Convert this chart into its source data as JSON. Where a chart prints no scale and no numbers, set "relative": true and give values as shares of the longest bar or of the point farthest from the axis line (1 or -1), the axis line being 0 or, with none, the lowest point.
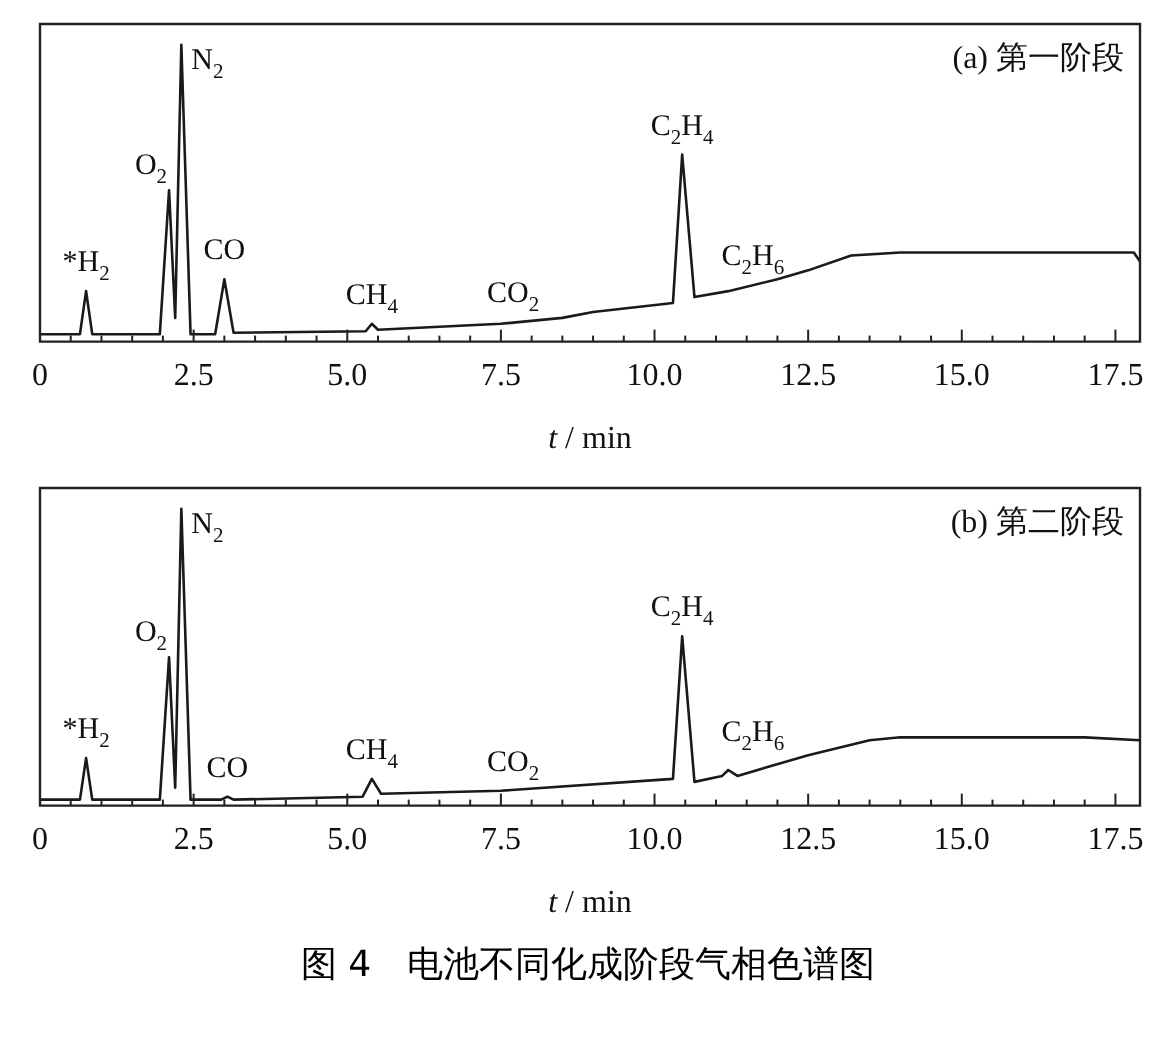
{
  "chart_data": [
    {
      "type": "line",
      "title": "(a) 第一阶段",
      "xlabel": "t / min",
      "relative": true,
      "marker": "none",
      "line_style": "solid",
      "legend": false,
      "grid": false,
      "xlim": [
        0,
        17.9
      ],
      "xticks": [
        0,
        {
          "value": 0.5,
          "label": null
        },
        {
          "value": 1,
          "label": null
        },
        {
          "value": 1.5,
          "label": null
        },
        {
          "value": 2,
          "label": null
        },
        2.5,
        {
          "value": 3,
          "label": null
        },
        {
          "value": 3.5,
          "label": null
        },
        {
          "value": 4,
          "label": null
        },
        {
          "value": 4.5,
          "label": null
        },
        {
          "value": 5,
          "label": "5.0"
        },
        {
          "value": 5.5,
          "label": null
        },
        {
          "value": 6,
          "label": null
        },
        {
          "value": 6.5,
          "label": null
        },
        {
          "value": 7,
          "label": null
        },
        7.5,
        {
          "value": 8,
          "label": null
        },
        {
          "value": 8.5,
          "label": null
        },
        {
          "value": 9,
          "label": null
        },
        {
          "value": 9.5,
          "label": null
        },
        {
          "value": 10,
          "label": "10.0"
        },
        {
          "value": 10.5,
          "label": null
        },
        {
          "value": 11,
          "label": null
        },
        {
          "value": 11.5,
          "label": null
        },
        {
          "value": 12,
          "label": null
        },
        12.5,
        {
          "value": 13,
          "label": null
        },
        {
          "value": 13.5,
          "label": null
        },
        {
          "value": 14,
          "label": null
        },
        {
          "value": 14.5,
          "label": null
        },
        {
          "value": 15,
          "label": "15.0"
        },
        {
          "value": 15.5,
          "label": null
        },
        {
          "value": 16,
          "label": null
        },
        {
          "value": 16.5,
          "label": null
        },
        {
          "value": 17,
          "label": null
        },
        17.5
      ],
      "series": [
        {
          "color": "#1a1a1a",
          "x": [
            0,
            0.65,
            0.75,
            0.85,
            1.95,
            2.1,
            2.2,
            2.3,
            2.45,
            2.85,
            3.0,
            3.15,
            5.3,
            5.4,
            5.5,
            7.5,
            8.5,
            9.0,
            10.3,
            10.45,
            10.65,
            11.2,
            12.0,
            12.5,
            13.2,
            14,
            17.8,
            17.9
          ],
          "values": [
            0.025,
            0.025,
            0.17,
            0.025,
            0.025,
            0.51,
            0.08,
            1.0,
            0.025,
            0.025,
            0.21,
            0.03,
            0.035,
            0.06,
            0.04,
            0.06,
            0.08,
            0.1,
            0.13,
            0.63,
            0.15,
            0.17,
            0.21,
            0.24,
            0.29,
            0.3,
            0.3,
            0.27
          ]
        }
      ],
      "annotations": [
        {
          "text": "*H$_{2}$",
          "x": 0.75,
          "y": 0.17
        },
        {
          "text": "O$_{2}$",
          "x": 2.1,
          "y": 0.51
        },
        {
          "text": "N$_{2}$",
          "x": 2.3,
          "y": 1.0
        },
        {
          "text": "CO",
          "x": 3.0,
          "y": 0.21
        },
        {
          "text": "CH$_{4}$",
          "x": 5.4,
          "y": 0.06
        },
        {
          "text": "CO$_{2}$",
          "x": 7.7,
          "y": 0.065
        },
        {
          "text": "C$_{2}$H$_{4}$",
          "x": 10.45,
          "y": 0.63
        },
        {
          "text": "C$_{2}$H$_{6}$",
          "x": 11.6,
          "y": 0.19
        }
      ]
    },
    {
      "type": "line",
      "title": "(b) 第二阶段",
      "xlabel": "t / min",
      "relative": true,
      "marker": "none",
      "line_style": "solid",
      "legend": false,
      "grid": false,
      "xlim": [
        0,
        17.9
      ],
      "xticks": [
        0,
        {
          "value": 0.5,
          "label": null
        },
        {
          "value": 1,
          "label": null
        },
        {
          "value": 1.5,
          "label": null
        },
        {
          "value": 2,
          "label": null
        },
        2.5,
        {
          "value": 3,
          "label": null
        },
        {
          "value": 3.5,
          "label": null
        },
        {
          "value": 4,
          "label": null
        },
        {
          "value": 4.5,
          "label": null
        },
        {
          "value": 5,
          "label": "5.0"
        },
        {
          "value": 5.5,
          "label": null
        },
        {
          "value": 6,
          "label": null
        },
        {
          "value": 6.5,
          "label": null
        },
        {
          "value": 7,
          "label": null
        },
        7.5,
        {
          "value": 8,
          "label": null
        },
        {
          "value": 8.5,
          "label": null
        },
        {
          "value": 9,
          "label": null
        },
        {
          "value": 9.5,
          "label": null
        },
        {
          "value": 10,
          "label": "10.0"
        },
        {
          "value": 10.5,
          "label": null
        },
        {
          "value": 11,
          "label": null
        },
        {
          "value": 11.5,
          "label": null
        },
        {
          "value": 12,
          "label": null
        },
        12.5,
        {
          "value": 13,
          "label": null
        },
        {
          "value": 13.5,
          "label": null
        },
        {
          "value": 14,
          "label": null
        },
        {
          "value": 14.5,
          "label": null
        },
        {
          "value": 15,
          "label": "15.0"
        },
        {
          "value": 15.5,
          "label": null
        },
        {
          "value": 16,
          "label": null
        },
        {
          "value": 16.5,
          "label": null
        },
        {
          "value": 17,
          "label": null
        },
        17.5
      ],
      "series": [
        {
          "color": "#1a1a1a",
          "x": [
            0,
            0.65,
            0.75,
            0.85,
            1.95,
            2.1,
            2.2,
            2.3,
            2.45,
            2.95,
            3.05,
            3.15,
            5.25,
            5.4,
            5.55,
            7.5,
            10.3,
            10.45,
            10.65,
            11.1,
            11.2,
            11.35,
            12.5,
            13.5,
            14,
            15,
            16,
            17,
            17.9
          ],
          "values": [
            0.02,
            0.02,
            0.16,
            0.02,
            0.02,
            0.5,
            0.06,
            1.0,
            0.02,
            0.02,
            0.03,
            0.02,
            0.03,
            0.09,
            0.04,
            0.05,
            0.09,
            0.57,
            0.08,
            0.1,
            0.12,
            0.1,
            0.17,
            0.22,
            0.23,
            0.23,
            0.23,
            0.23,
            0.22
          ]
        }
      ],
      "annotations": [
        {
          "text": "*H$_{2}$",
          "x": 0.75,
          "y": 0.16
        },
        {
          "text": "O$_{2}$",
          "x": 2.1,
          "y": 0.5
        },
        {
          "text": "N$_{2}$",
          "x": 2.3,
          "y": 1.0
        },
        {
          "text": "CO",
          "x": 3.05,
          "y": 0.03
        },
        {
          "text": "CH$_{4}$",
          "x": 5.4,
          "y": 0.09
        },
        {
          "text": "CO$_{2}$",
          "x": 7.7,
          "y": 0.05
        },
        {
          "text": "C$_{2}$H$_{4}$",
          "x": 10.45,
          "y": 0.57
        },
        {
          "text": "C$_{2}$H$_{6}$",
          "x": 11.6,
          "y": 0.15
        },
        "图 4　电池不同化成阶段气相色谱图"
      ]
    }
  ]
}
